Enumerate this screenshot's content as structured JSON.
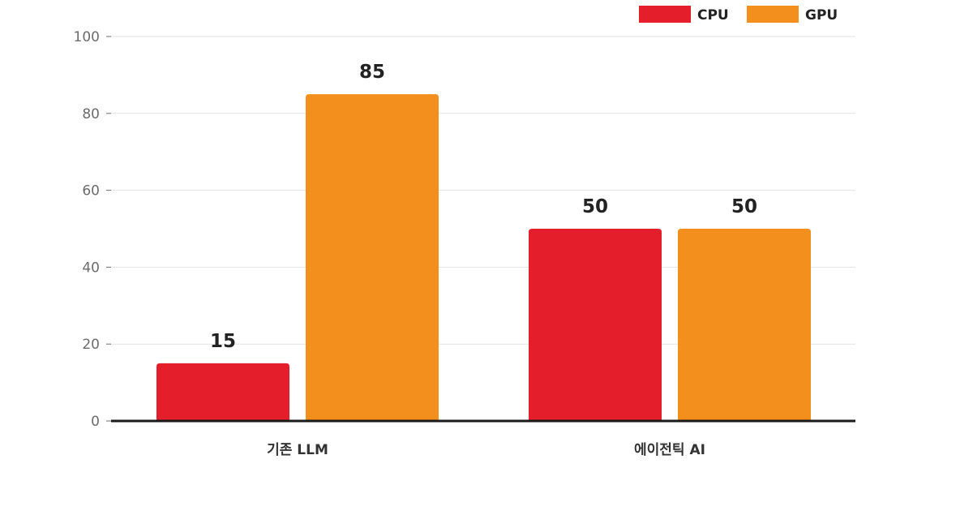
{
  "chart_data": {
    "type": "bar",
    "title": "",
    "xlabel": "",
    "ylabel": "",
    "categories": [
      "기존 LLM",
      "에이전틱 AI"
    ],
    "series": [
      {
        "name": "CPU",
        "color": "#e41f2b",
        "values": [
          15,
          50
        ]
      },
      {
        "name": "GPU",
        "color": "#f28f1d",
        "values": [
          85,
          50
        ]
      }
    ],
    "ylim": [
      0,
      100
    ],
    "yticks": [
      0,
      20,
      40,
      60,
      80,
      100
    ],
    "grid": true,
    "legend": "top-right",
    "data_labels": true
  }
}
